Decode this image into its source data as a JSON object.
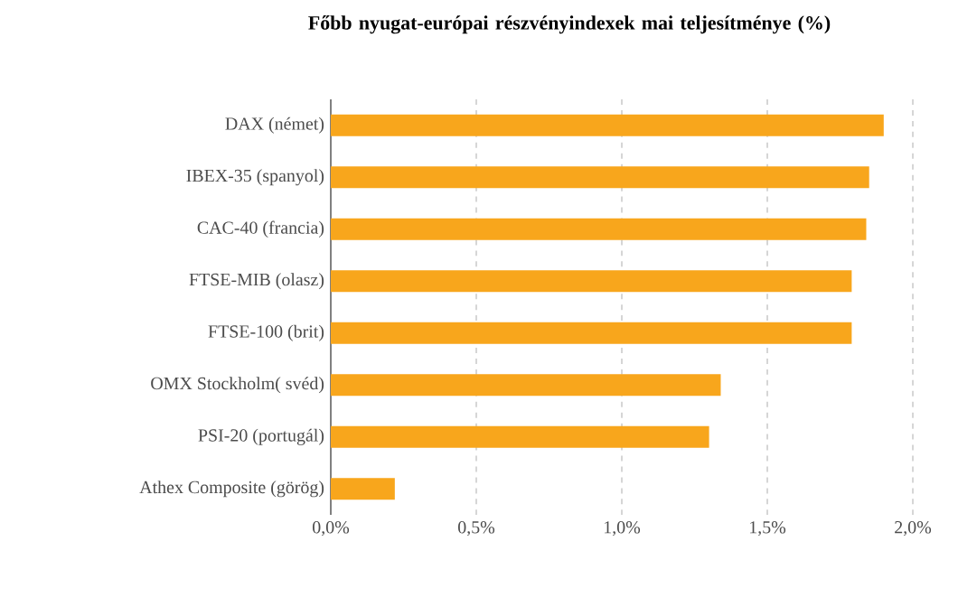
{
  "chart_data": {
    "type": "bar",
    "orientation": "horizontal",
    "title": "Főbb nyugat-európai részvényindexek mai teljesítménye (%)",
    "categories": [
      "DAX (német)",
      "IBEX-35 (spanyol)",
      "CAC-40 (francia)",
      "FTSE-MIB (olasz)",
      "FTSE-100 (brit)",
      "OMX Stockholm( svéd)",
      "PSI-20 (portugál)",
      "Athex Composite (görög)"
    ],
    "values": [
      1.9,
      1.85,
      1.84,
      1.79,
      1.79,
      1.34,
      1.3,
      0.22
    ],
    "color": "#f8a61c",
    "xlim": [
      0,
      2.0
    ],
    "xticks": [
      {
        "value": 0,
        "label": "0,0%"
      },
      {
        "value": 0.5,
        "label": "0,5%"
      },
      {
        "value": 1.0,
        "label": "1,0%"
      },
      {
        "value": 1.5,
        "label": "1,5%"
      },
      {
        "value": 2.0,
        "label": "2,0%"
      }
    ],
    "grid": "x"
  }
}
